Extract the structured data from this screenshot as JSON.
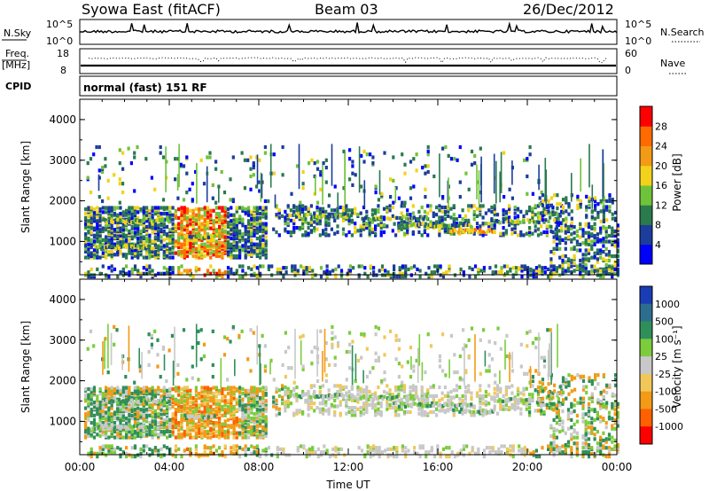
{
  "header": {
    "station": "Syowa East (fitACF)",
    "beam": "Beam 03",
    "date": "26/Dec/2012"
  },
  "strip_noise": {
    "left_label": "N.Sky",
    "top_tick": "10^5",
    "bottom_tick": "10^0",
    "right_label": "N.Search"
  },
  "strip_freq": {
    "left_label_1": "Freq.",
    "left_label_2": "[MHz]",
    "top_tick": "18",
    "bottom_tick": "8",
    "right_top_tick": "60",
    "right_bottom_tick": "0",
    "right_label": "Nave"
  },
  "strip_cpid": {
    "left_label": "CPID",
    "text": "normal (fast) 151 RF"
  },
  "chart_data": [
    {
      "type": "heatmap",
      "parameter": "power",
      "ylabel": "Slant Range [km]",
      "yticks": [
        "1000",
        "2000",
        "3000",
        "4000"
      ],
      "ylim": [
        180,
        4500
      ],
      "xlim": [
        0,
        24
      ],
      "colorbar": {
        "label": "Power [dB]",
        "ticks": [
          "4",
          "8",
          "12",
          "16",
          "20",
          "24",
          "28"
        ],
        "colors": [
          "#0000ff",
          "#1b3d9b",
          "#2a7a4e",
          "#6fc33a",
          "#f2d21a",
          "#f39a16",
          "#ff6b00",
          "#ff0000"
        ]
      }
    },
    {
      "type": "heatmap",
      "parameter": "velocity",
      "ylabel": "Slant Range [km]",
      "yticks": [
        "1000",
        "2000",
        "3000",
        "4000"
      ],
      "ylim": [
        180,
        4500
      ],
      "xlim": [
        0,
        24
      ],
      "xlabel": "Time UT",
      "xticks": [
        "00:00",
        "04:00",
        "08:00",
        "12:00",
        "16:00",
        "20:00",
        "00:00"
      ],
      "colorbar": {
        "label": "Velocity [m s⁻¹]",
        "ticks": [
          "1000",
          "500",
          "100",
          "25",
          "-25",
          "-100",
          "-500",
          "-1000"
        ],
        "colors": [
          "#1a3db5",
          "#2d6e8f",
          "#2f8f5a",
          "#7ccc3c",
          "#c8c8c8",
          "#f0c85a",
          "#f39a16",
          "#ff6000",
          "#ff0000"
        ]
      }
    }
  ]
}
